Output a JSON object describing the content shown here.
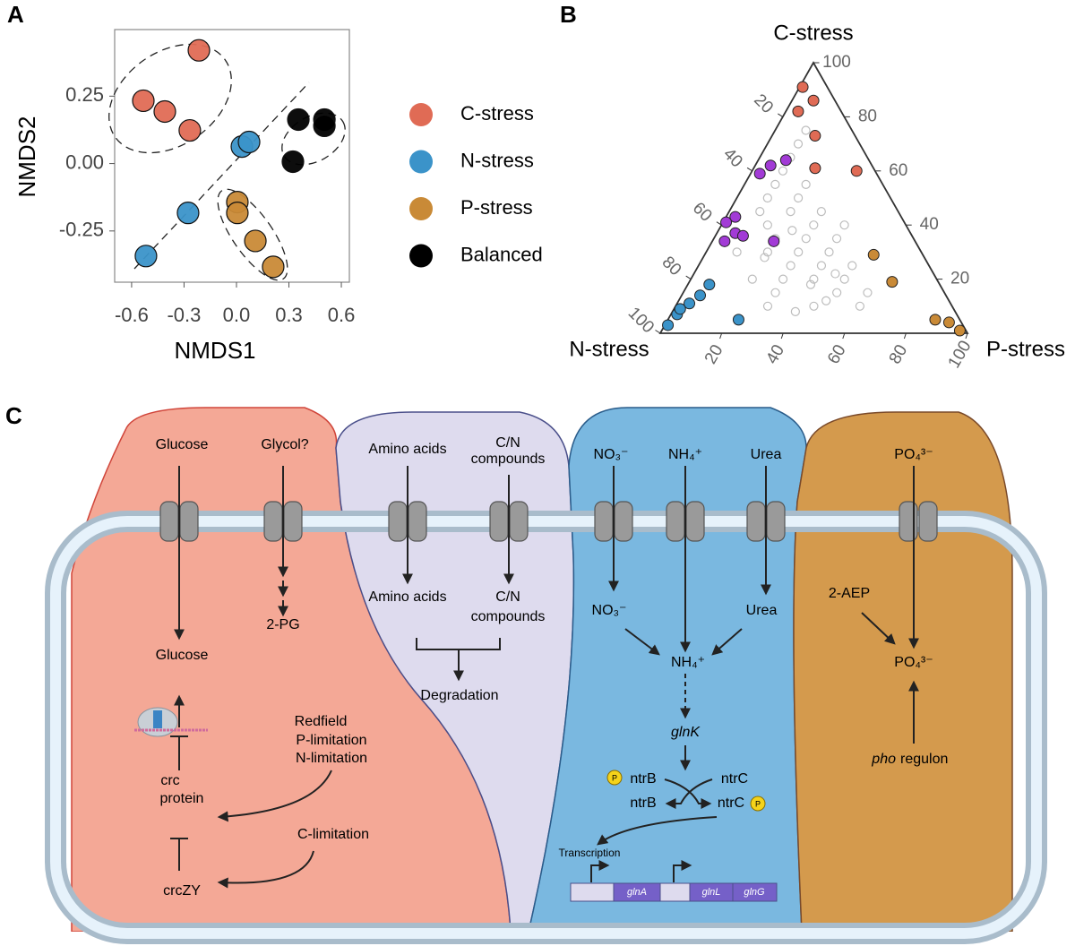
{
  "chart_data": [
    {
      "type": "scatter",
      "panel": "A",
      "xlabel": "NMDS1",
      "ylabel": "NMDS2",
      "xlim": [
        -0.697,
        0.646
      ],
      "ylim": [
        -0.44,
        0.497
      ],
      "xticks": [
        -0.6,
        -0.3,
        {
          "value": 0,
          "label": "0.0"
        },
        0.3,
        0.6
      ],
      "yticks": [
        -0.25,
        {
          "value": 0,
          "label": "0.00"
        },
        0.25
      ],
      "series": [
        {
          "name": "C-stress",
          "color": "#e06b55",
          "x": [
            -0.215,
            -0.533,
            -0.41,
            -0.267
          ],
          "values": [
            0.42,
            0.233,
            0.193,
            0.123
          ]
        },
        {
          "name": "N-stress",
          "color": "#3b93c9",
          "x": [
            0.031,
            0.072,
            -0.277,
            -0.518
          ],
          "values": [
            0.063,
            0.08,
            -0.183,
            -0.343
          ]
        },
        {
          "name": "P-stress",
          "color": "#c98a37",
          "x": [
            0.005,
            0.005,
            0.108,
            0.21
          ],
          "values": [
            -0.143,
            -0.183,
            -0.287,
            -0.383
          ]
        },
        {
          "name": "Balanced",
          "color": "#000000",
          "x": [
            0.354,
            0.503,
            0.503,
            0.323
          ],
          "values": [
            0.163,
            0.163,
            0.14,
            0.007
          ]
        }
      ]
    },
    {
      "type": "ternary",
      "panel": "B",
      "axes": [
        "C-stress",
        "N-stress",
        "P-stress"
      ],
      "cticks": [
        20,
        40,
        60,
        80,
        100
      ],
      "nticks": [
        20,
        40,
        60,
        80,
        100
      ],
      "pticks": [
        20,
        40,
        60,
        80,
        100
      ],
      "series": [
        {
          "color": "#bdbdbd",
          "values": [
            [
              40,
              30,
              30
            ],
            [
              35,
              35,
              30
            ],
            [
              45,
              35,
              20
            ],
            [
              50,
              30,
              20
            ],
            [
              30,
              40,
              30
            ],
            [
              25,
              45,
              30
            ],
            [
              20,
              50,
              30
            ],
            [
              30,
              50,
              20
            ],
            [
              40,
              45,
              15
            ],
            [
              55,
              35,
              10
            ],
            [
              60,
              30,
              10
            ],
            [
              65,
              25,
              10
            ],
            [
              50,
              40,
              10
            ],
            [
              35,
              45,
              20
            ],
            [
              25,
              35,
              40
            ],
            [
              20,
              30,
              50
            ],
            [
              15,
              35,
              50
            ],
            [
              15,
              25,
              60
            ],
            [
              10,
              30,
              60
            ],
            [
              20,
              40,
              40
            ],
            [
              30,
              30,
              40
            ],
            [
              40,
              20,
              40
            ],
            [
              45,
              25,
              30
            ],
            [
              35,
              25,
              40
            ],
            [
              25,
              25,
              50
            ],
            [
              10,
              45,
              45
            ],
            [
              15,
              55,
              30
            ],
            [
              10,
              60,
              30
            ],
            [
              20,
              60,
              20
            ],
            [
              30,
              60,
              10
            ],
            [
              45,
              45,
              10
            ],
            [
              70,
              20,
              10
            ],
            [
              75,
              15,
              10
            ],
            [
              55,
              25,
              20
            ],
            [
              28,
              52,
              20
            ],
            [
              18,
              42,
              40
            ],
            [
              12,
              40,
              48
            ],
            [
              8,
              52,
              40
            ],
            [
              22,
              32,
              46
            ],
            [
              38,
              38,
              24
            ]
          ]
        },
        {
          "color": "#a23bd6",
          "values": [
            [
              59,
              38,
              3
            ],
            [
              62,
              33,
              5
            ],
            [
              64,
              27,
              9
            ],
            [
              43,
              54,
              3
            ],
            [
              37,
              57,
              6
            ],
            [
              34,
              62,
              4
            ],
            [
              34,
              46,
              20
            ],
            [
              36,
              55,
              9
            ],
            [
              41,
              58,
              1
            ]
          ]
        },
        {
          "color": "#e06b55",
          "values": [
            [
              91,
              8,
              1
            ],
            [
              86,
              7,
              7
            ],
            [
              82,
              14,
              4
            ],
            [
              73,
              13,
              14
            ],
            [
              60,
              6,
              34
            ],
            [
              61,
              19,
              20
            ]
          ]
        },
        {
          "color": "#3b93c9",
          "values": [
            [
              5,
              72,
              23
            ],
            [
              18,
              75,
              7
            ],
            [
              11,
              85,
              4
            ],
            [
              7,
              91,
              2
            ],
            [
              3,
              96,
              1
            ],
            [
              14,
              80,
              6
            ],
            [
              9,
              89,
              2
            ]
          ]
        },
        {
          "color": "#c98a37",
          "values": [
            [
              29,
              16,
              55
            ],
            [
              19,
              15,
              66
            ],
            [
              5,
              8,
              87
            ],
            [
              4,
              4,
              92
            ],
            [
              1,
              2,
              97
            ]
          ]
        }
      ]
    }
  ],
  "panel_c": {
    "label": "C",
    "carbon": {
      "glucose_out": "Glucose",
      "glycol": "Glycol?",
      "glucose_in": "Glucose",
      "pg": "2-PG",
      "redfield": [
        "Redfield",
        "P-limitation",
        "N-limitation"
      ],
      "crc": [
        "crc",
        "protein"
      ],
      "c_limitation": "C-limitation",
      "crczy": "crcZY"
    },
    "cn": {
      "amino_out": "Amino acids",
      "cn_out": [
        "C/N",
        "compounds"
      ],
      "amino_in": "Amino acids",
      "cn_in": [
        "C/N",
        "compounds"
      ],
      "degradation": "Degradation"
    },
    "nitrogen": {
      "no3_out": "NO₃⁻",
      "nh4_out": "NH₄⁺",
      "urea_out": "Urea",
      "no3_in": "NO₃⁻",
      "urea_in": "Urea",
      "nh4_in": "NH₄⁺",
      "glnk": "glnK",
      "ntrb": "ntrB",
      "ntrc": "ntrC",
      "ntrb2": "ntrB",
      "ntrc2": "ntrC",
      "p": "P",
      "p2": "P",
      "transcription": "Transcription",
      "genes": [
        "glnA",
        "glnL",
        "glnG"
      ]
    },
    "phosphorus": {
      "po4_out": "PO₄³⁻",
      "aep": "2-AEP",
      "po4_in": "PO₄³⁻",
      "pho": "pho",
      "regulon": "regulon"
    }
  }
}
